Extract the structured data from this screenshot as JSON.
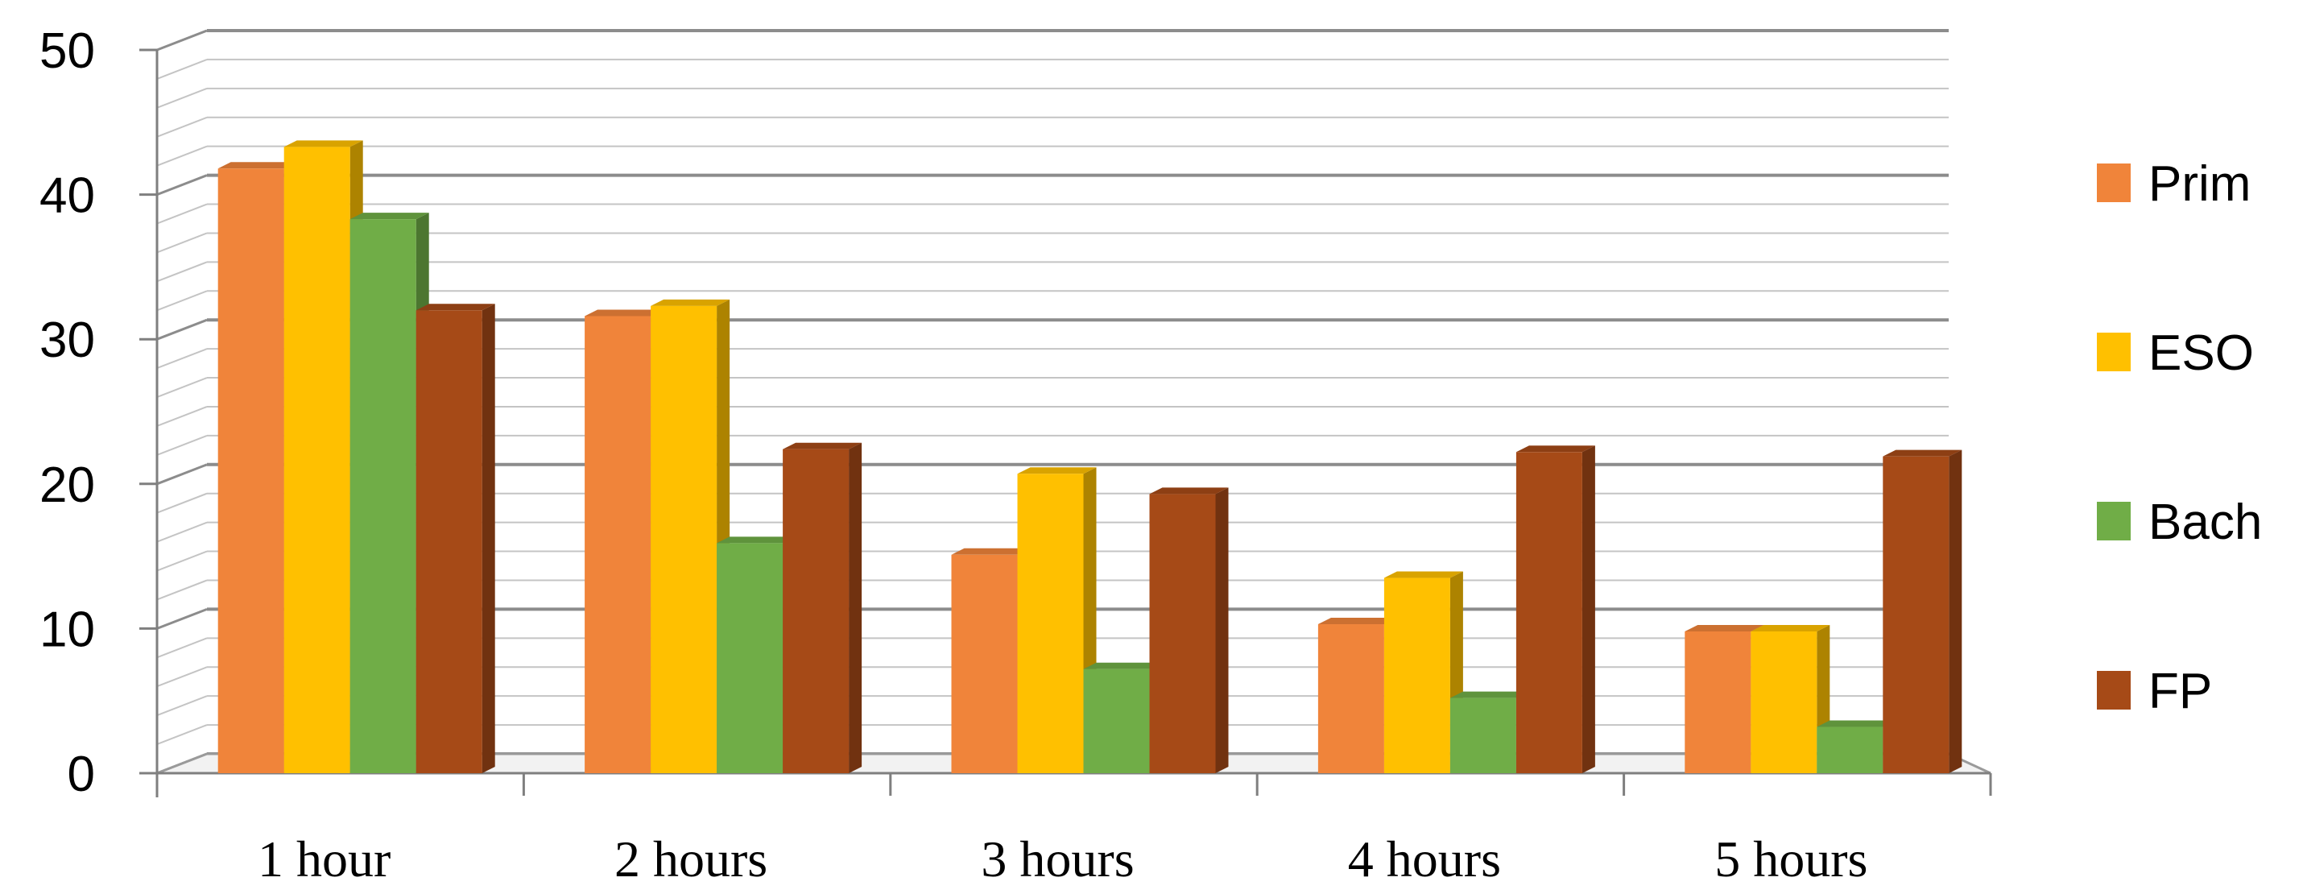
{
  "chart_data": {
    "type": "bar",
    "style": "3d-clustered-column",
    "categories": [
      "1 hour",
      "2 hours",
      "3 hours",
      "4 hours",
      "5 hours"
    ],
    "series": [
      {
        "name": "Prim",
        "color": "#F0843A",
        "values": [
          41.8,
          31.6,
          15.1,
          10.3,
          9.8
        ]
      },
      {
        "name": "ESO",
        "color": "#FFC000",
        "values": [
          43.3,
          32.3,
          20.7,
          13.5,
          9.8
        ]
      },
      {
        "name": "Bach",
        "color": "#70AD47",
        "values": [
          38.3,
          15.9,
          7.2,
          5.2,
          3.2
        ]
      },
      {
        "name": "FP",
        "color": "#A64A17",
        "values": [
          32.0,
          22.4,
          19.3,
          22.2,
          21.9
        ]
      }
    ],
    "yticks": [
      "0",
      "10",
      "20",
      "30",
      "40",
      "50"
    ],
    "ylim": [
      0,
      50
    ],
    "grid": true,
    "legend_position": "right"
  }
}
